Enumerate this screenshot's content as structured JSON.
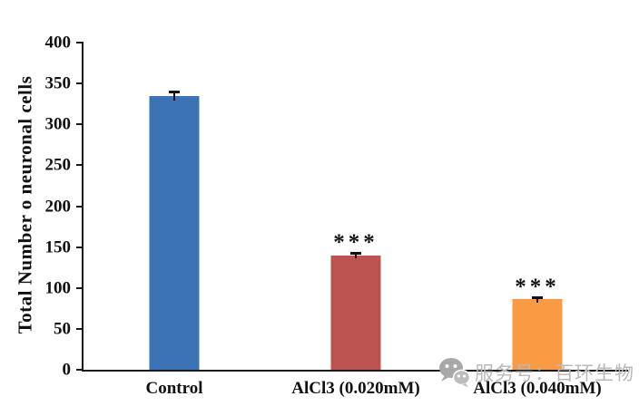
{
  "chart_data": {
    "type": "bar",
    "categories": [
      "Control",
      "AlCl3 (0.020mM)",
      "AlCl3 (0.040mM)"
    ],
    "values": [
      335,
      140,
      86
    ],
    "errors": [
      6,
      4,
      4
    ],
    "significance": [
      "",
      "***",
      "***"
    ],
    "bar_colors": [
      "#3B73B6",
      "#BD5350",
      "#FA9A43"
    ],
    "title": "",
    "xlabel": "",
    "ylabel": "Total Number o neuronal cells",
    "ylim": [
      0,
      400
    ],
    "ytick_step": 50,
    "grid": false,
    "legend": "none",
    "axis_color": "#1a1a1a",
    "error_bar_color": "#111111"
  },
  "watermark": {
    "icon": "wechat-icon",
    "text": "服务号：百环生物",
    "color": "#b9b9b9",
    "icon_color": "#a8a8a8"
  }
}
